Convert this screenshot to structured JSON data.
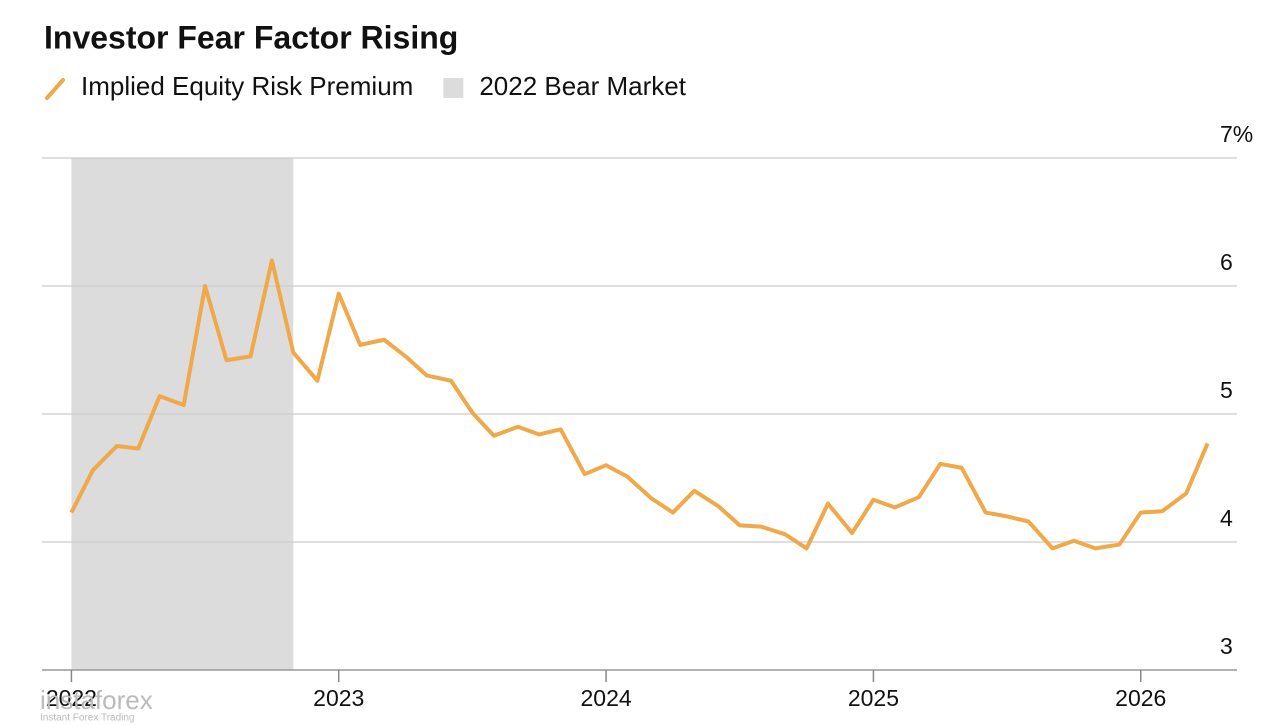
{
  "chart_data": {
    "type": "line",
    "title": "Investor Fear Factor Rising",
    "x": [
      2022,
      2022.08,
      2022.17,
      2022.25,
      2022.33,
      2022.42,
      2022.5,
      2022.58,
      2022.67,
      2022.75,
      2022.83,
      2022.92,
      2023,
      2023.08,
      2023.17,
      2023.25,
      2023.33,
      2023.42,
      2023.5,
      2023.58,
      2023.67,
      2023.75,
      2023.83,
      2023.92,
      2024,
      2024.08,
      2024.17,
      2024.25,
      2024.33,
      2024.42,
      2024.5,
      2024.58,
      2024.67,
      2024.75,
      2024.83,
      2024.92,
      2025,
      2025.08,
      2025.17,
      2025.25,
      2025.33,
      2025.42,
      2025.5,
      2025.58,
      2025.67,
      2025.75,
      2025.83,
      2025.92,
      2026,
      2026.08,
      2026.17,
      2026.25
    ],
    "series": [
      {
        "name": "Implied Equity Risk Premium",
        "color": "#f0a848",
        "values": [
          4.23,
          4.56,
          4.75,
          4.73,
          5.14,
          5.07,
          6.0,
          5.42,
          5.45,
          6.2,
          5.48,
          5.26,
          5.94,
          5.54,
          5.58,
          5.45,
          5.3,
          5.26,
          5.01,
          4.83,
          4.9,
          4.84,
          4.88,
          4.53,
          4.6,
          4.51,
          4.34,
          4.23,
          4.4,
          4.28,
          4.13,
          4.12,
          4.06,
          3.95,
          4.3,
          4.07,
          4.33,
          4.27,
          4.35,
          4.61,
          4.58,
          4.23,
          4.2,
          4.16,
          3.95,
          4.01,
          3.95,
          3.98,
          4.23,
          4.24,
          4.38,
          4.77
        ]
      }
    ],
    "shaded_region": {
      "name": "2022 Bear Market",
      "x": [
        2022,
        2022.83
      ],
      "color": "#dcdcdc"
    },
    "xlim": [
      2021.89,
      2026.36
    ],
    "xticks": [
      2022,
      2023,
      2024,
      2025,
      2026
    ],
    "ylim": [
      3,
      7
    ],
    "yticks": [
      3,
      4,
      5,
      6,
      {
        "value": 7,
        "label": "7%"
      }
    ],
    "grid": true,
    "watermark": {
      "name": "instaforex",
      "tagline": "Instant Forex Trading"
    }
  }
}
